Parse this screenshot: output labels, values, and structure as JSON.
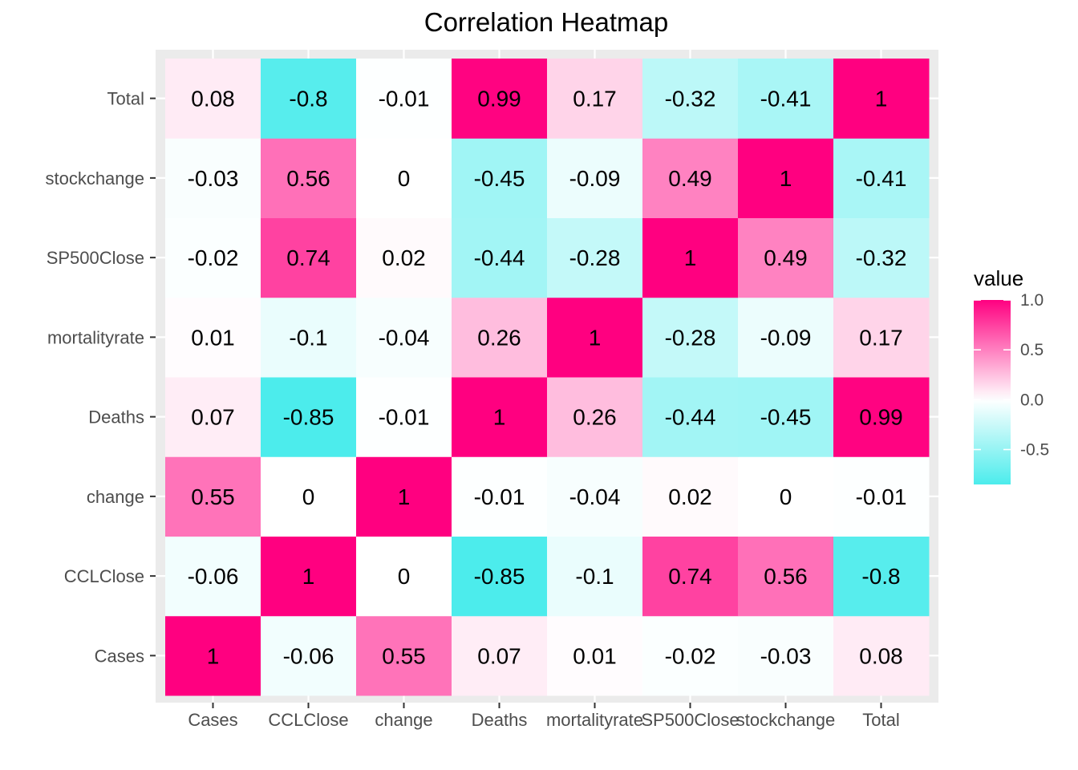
{
  "chart_data": {
    "type": "heatmap",
    "title": "Correlation Heatmap",
    "xlabel": "",
    "ylabel": "",
    "x_categories": [
      "Cases",
      "CCLClose",
      "change",
      "Deaths",
      "mortalityrate",
      "SP500Close",
      "stockchange",
      "Total"
    ],
    "y_categories": [
      "Cases",
      "CCLClose",
      "change",
      "Deaths",
      "mortalityrate",
      "SP500Close",
      "stockchange",
      "Total"
    ],
    "matrix": [
      [
        1,
        -0.06,
        0.55,
        0.07,
        0.01,
        -0.02,
        -0.03,
        0.08
      ],
      [
        -0.06,
        1,
        0,
        -0.85,
        -0.1,
        0.74,
        0.56,
        -0.8
      ],
      [
        0.55,
        0,
        1,
        -0.01,
        -0.04,
        0.02,
        0,
        -0.01
      ],
      [
        0.07,
        -0.85,
        -0.01,
        1,
        0.26,
        -0.44,
        -0.45,
        0.99
      ],
      [
        0.01,
        -0.1,
        -0.04,
        0.26,
        1,
        -0.28,
        -0.09,
        0.17
      ],
      [
        -0.02,
        0.74,
        0.02,
        -0.44,
        -0.28,
        1,
        0.49,
        -0.32
      ],
      [
        -0.03,
        0.56,
        0,
        -0.45,
        -0.09,
        0.49,
        1,
        -0.41
      ],
      [
        0.08,
        -0.8,
        -0.01,
        0.99,
        0.17,
        -0.32,
        -0.41,
        1
      ]
    ],
    "legend": {
      "title": "value",
      "placement": "right",
      "range": [
        -0.85,
        1
      ],
      "ticks": [
        1.0,
        0.5,
        0.0,
        -0.5
      ],
      "tick_labels": [
        "1.0",
        "0.5",
        "0.0",
        "-0.5"
      ]
    },
    "colors": {
      "low": "#4cecec",
      "mid": "#ffffff",
      "high": "#ff0080",
      "panel_background": "#ebebeb",
      "grid": "#ffffff"
    },
    "grid": true
  }
}
